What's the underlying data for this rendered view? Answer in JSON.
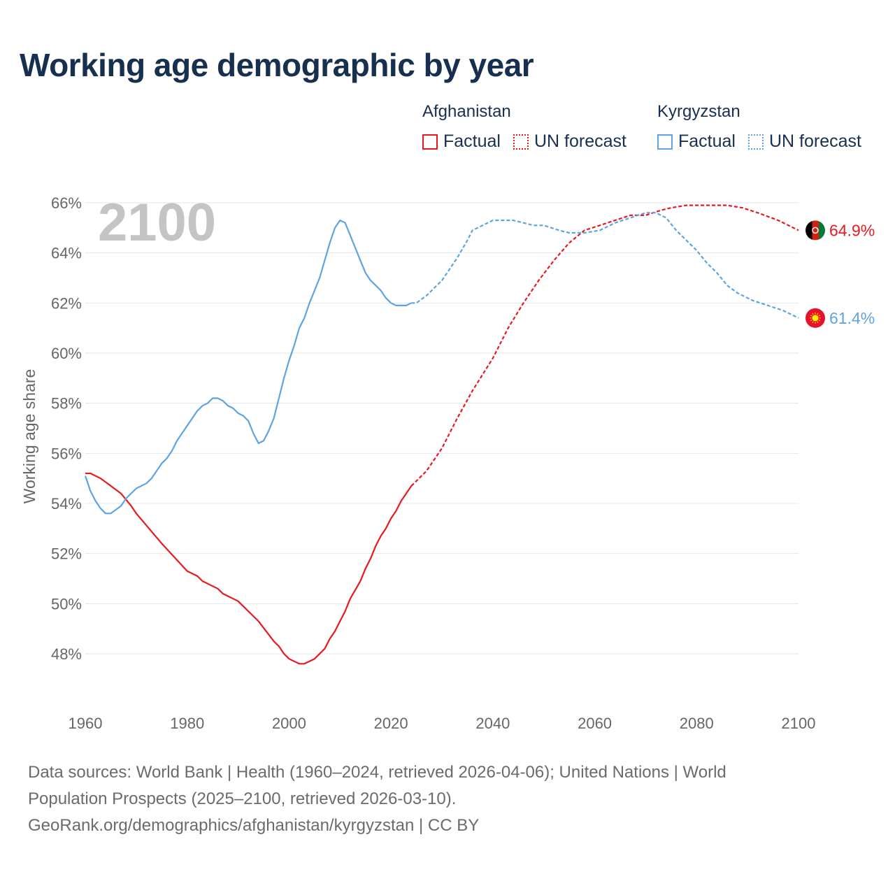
{
  "title": "Working age demographic by year",
  "legend": {
    "groups": [
      {
        "country": "Afghanistan",
        "factual_label": "Factual",
        "forecast_label": "UN forecast",
        "color": "#e8191f"
      },
      {
        "country": "Kyrgyzstan",
        "factual_label": "Factual",
        "forecast_label": "UN forecast",
        "color": "#5ea4e2"
      }
    ]
  },
  "chart_data": {
    "type": "line",
    "title": "Working age demographic by year",
    "xlabel": "",
    "ylabel": "Working age share",
    "xlim": [
      1960,
      2100
    ],
    "ylim": [
      46.5,
      66.5
    ],
    "x_ticks": [
      1960,
      1980,
      2000,
      2020,
      2040,
      2060,
      2080,
      2100
    ],
    "y_ticks": [
      48,
      50,
      52,
      54,
      56,
      58,
      60,
      62,
      64,
      66
    ],
    "y_tick_suffix": "%",
    "grid": true,
    "year_overlay": "2100",
    "forecast_start": 2024,
    "series": [
      {
        "name": "Afghanistan",
        "color": "#e8191f",
        "end_label": "64.9%",
        "flag_colors": [
          "#000000",
          "#d32011",
          "#007a36"
        ],
        "points": [
          [
            1960,
            55.2
          ],
          [
            1961,
            55.2
          ],
          [
            1963,
            55.0
          ],
          [
            1965,
            54.7
          ],
          [
            1967,
            54.4
          ],
          [
            1969,
            53.9
          ],
          [
            1970,
            53.6
          ],
          [
            1975,
            52.4
          ],
          [
            1980,
            51.3
          ],
          [
            1982,
            51.1
          ],
          [
            1983,
            50.9
          ],
          [
            1986,
            50.6
          ],
          [
            1987,
            50.4
          ],
          [
            1990,
            50.1
          ],
          [
            1992,
            49.7
          ],
          [
            1994,
            49.3
          ],
          [
            1997,
            48.5
          ],
          [
            1998,
            48.3
          ],
          [
            1999,
            48.0
          ],
          [
            2000,
            47.8
          ],
          [
            2001,
            47.7
          ],
          [
            2002,
            47.6
          ],
          [
            2003,
            47.6
          ],
          [
            2005,
            47.8
          ],
          [
            2007,
            48.2
          ],
          [
            2008,
            48.6
          ],
          [
            2009,
            48.9
          ],
          [
            2010,
            49.3
          ],
          [
            2011,
            49.7
          ],
          [
            2012,
            50.2
          ],
          [
            2014,
            50.9
          ],
          [
            2015,
            51.4
          ],
          [
            2016,
            51.8
          ],
          [
            2017,
            52.3
          ],
          [
            2018,
            52.7
          ],
          [
            2019,
            53.0
          ],
          [
            2020,
            53.4
          ],
          [
            2021,
            53.7
          ],
          [
            2022,
            54.1
          ],
          [
            2023,
            54.4
          ],
          [
            2024,
            54.7
          ],
          [
            2025,
            54.9
          ],
          [
            2027,
            55.3
          ],
          [
            2030,
            56.2
          ],
          [
            2033,
            57.4
          ],
          [
            2036,
            58.5
          ],
          [
            2040,
            59.8
          ],
          [
            2043,
            61.0
          ],
          [
            2046,
            62.0
          ],
          [
            2049,
            62.9
          ],
          [
            2052,
            63.7
          ],
          [
            2055,
            64.4
          ],
          [
            2058,
            64.9
          ],
          [
            2061,
            65.1
          ],
          [
            2064,
            65.3
          ],
          [
            2067,
            65.5
          ],
          [
            2070,
            65.5
          ],
          [
            2073,
            65.7
          ],
          [
            2075,
            65.8
          ],
          [
            2078,
            65.9
          ],
          [
            2081,
            65.9
          ],
          [
            2086,
            65.9
          ],
          [
            2089,
            65.8
          ],
          [
            2092,
            65.6
          ],
          [
            2096,
            65.3
          ],
          [
            2099,
            65.0
          ],
          [
            2100,
            64.9
          ]
        ]
      },
      {
        "name": "Kyrgyzstan",
        "color": "#5ea4e2",
        "end_label": "61.4%",
        "flag_colors": [
          "#e8112d",
          "#ffef00"
        ],
        "points": [
          [
            1960,
            55.1
          ],
          [
            1961,
            54.5
          ],
          [
            1962,
            54.1
          ],
          [
            1963,
            53.8
          ],
          [
            1964,
            53.6
          ],
          [
            1965,
            53.6
          ],
          [
            1967,
            53.9
          ],
          [
            1968,
            54.2
          ],
          [
            1970,
            54.6
          ],
          [
            1972,
            54.8
          ],
          [
            1973,
            55.0
          ],
          [
            1975,
            55.6
          ],
          [
            1976,
            55.8
          ],
          [
            1977,
            56.1
          ],
          [
            1978,
            56.5
          ],
          [
            1980,
            57.1
          ],
          [
            1982,
            57.7
          ],
          [
            1983,
            57.9
          ],
          [
            1984,
            58.0
          ],
          [
            1985,
            58.2
          ],
          [
            1986,
            58.2
          ],
          [
            1987,
            58.1
          ],
          [
            1988,
            57.9
          ],
          [
            1989,
            57.8
          ],
          [
            1990,
            57.6
          ],
          [
            1991,
            57.5
          ],
          [
            1992,
            57.3
          ],
          [
            1993,
            56.8
          ],
          [
            1994,
            56.4
          ],
          [
            1995,
            56.5
          ],
          [
            1996,
            56.9
          ],
          [
            1997,
            57.4
          ],
          [
            1998,
            58.2
          ],
          [
            1999,
            59.0
          ],
          [
            2000,
            59.7
          ],
          [
            2001,
            60.3
          ],
          [
            2002,
            61.0
          ],
          [
            2003,
            61.4
          ],
          [
            2004,
            62.0
          ],
          [
            2005,
            62.5
          ],
          [
            2006,
            63.0
          ],
          [
            2007,
            63.7
          ],
          [
            2008,
            64.4
          ],
          [
            2009,
            65.0
          ],
          [
            2010,
            65.3
          ],
          [
            2011,
            65.2
          ],
          [
            2012,
            64.7
          ],
          [
            2013,
            64.2
          ],
          [
            2014,
            63.7
          ],
          [
            2015,
            63.2
          ],
          [
            2016,
            62.9
          ],
          [
            2017,
            62.7
          ],
          [
            2018,
            62.5
          ],
          [
            2019,
            62.2
          ],
          [
            2020,
            62.0
          ],
          [
            2021,
            61.9
          ],
          [
            2023,
            61.9
          ],
          [
            2024,
            62.0
          ],
          [
            2025,
            62.0
          ],
          [
            2027,
            62.3
          ],
          [
            2030,
            62.9
          ],
          [
            2033,
            63.8
          ],
          [
            2035,
            64.5
          ],
          [
            2036,
            64.9
          ],
          [
            2038,
            65.1
          ],
          [
            2040,
            65.3
          ],
          [
            2044,
            65.3
          ],
          [
            2046,
            65.2
          ],
          [
            2048,
            65.1
          ],
          [
            2050,
            65.1
          ],
          [
            2053,
            64.9
          ],
          [
            2055,
            64.8
          ],
          [
            2058,
            64.8
          ],
          [
            2061,
            64.9
          ],
          [
            2064,
            65.2
          ],
          [
            2067,
            65.4
          ],
          [
            2070,
            65.6
          ],
          [
            2072,
            65.6
          ],
          [
            2074,
            65.4
          ],
          [
            2076,
            64.9
          ],
          [
            2078,
            64.5
          ],
          [
            2080,
            64.1
          ],
          [
            2082,
            63.6
          ],
          [
            2084,
            63.2
          ],
          [
            2086,
            62.7
          ],
          [
            2088,
            62.4
          ],
          [
            2091,
            62.1
          ],
          [
            2094,
            61.9
          ],
          [
            2097,
            61.7
          ],
          [
            2100,
            61.4
          ]
        ]
      }
    ]
  },
  "source": {
    "line1": "Data sources: World Bank | Health (1960–2024, retrieved 2026-04-06); United Nations | World",
    "line2": "Population Prospects (2025–2100, retrieved 2026-03-10).",
    "line3": "GeoRank.org/demographics/afghanistan/kyrgyzstan | CC BY"
  }
}
